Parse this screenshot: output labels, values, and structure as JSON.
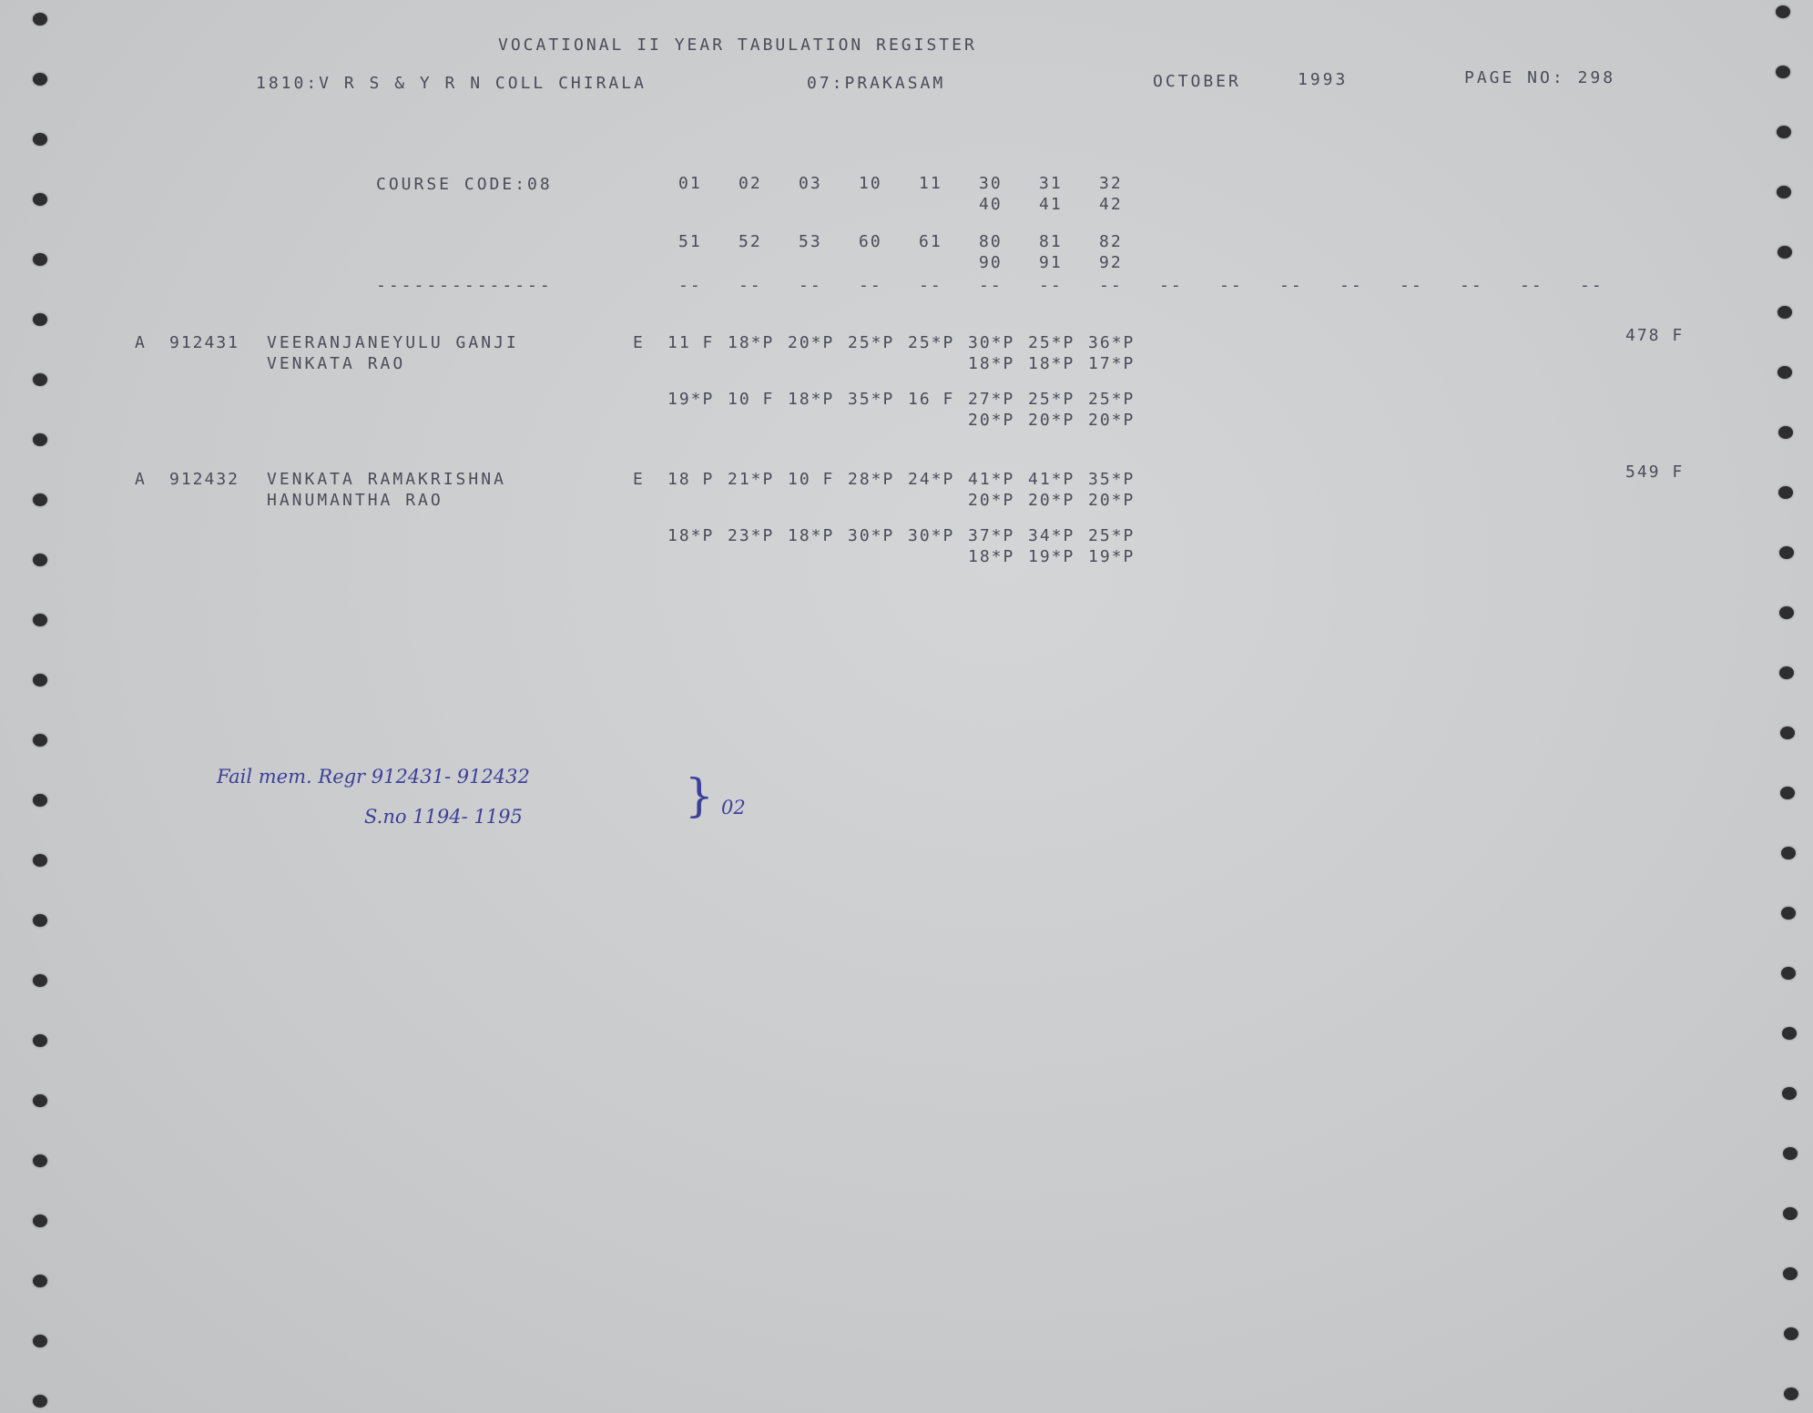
{
  "header": {
    "title": "VOCATIONAL II YEAR TABULATION REGISTER",
    "college": "1810:V R S & Y R N COLL CHIRALA",
    "district": "07:PRAKASAM",
    "month": "OCTOBER",
    "year": "1993",
    "page": "PAGE NO: 298"
  },
  "course": {
    "label": "COURSE CODE:08",
    "row1": [
      "01",
      "02",
      "03",
      "10",
      "11",
      "30",
      "31",
      "32"
    ],
    "row1_sub": [
      "40",
      "41",
      "42"
    ],
    "row2": [
      "51",
      "52",
      "53",
      "60",
      "61",
      "80",
      "81",
      "82"
    ],
    "row2_sub": [
      "90",
      "91",
      "92"
    ],
    "underline": "--------------",
    "dashes": [
      "--",
      "--",
      "--",
      "--",
      "--",
      "--",
      "--",
      "--",
      "--",
      "--",
      "--",
      "--",
      "--",
      "--",
      "--",
      "--"
    ]
  },
  "students": [
    {
      "category": "A",
      "regno": "912431",
      "name1": "VEERANJANEYULU GANJI",
      "name2": "VENKATA RAO",
      "medium": "E",
      "marks1": [
        "11 F",
        "18*P",
        "20*P",
        "25*P",
        "25*P",
        "30*P",
        "25*P",
        "36*P"
      ],
      "marks1_sub": [
        "18*P",
        "18*P",
        "17*P"
      ],
      "marks2": [
        "19*P",
        "10 F",
        "18*P",
        "35*P",
        "16 F",
        "27*P",
        "25*P",
        "25*P"
      ],
      "marks2_sub": [
        "20*P",
        "20*P",
        "20*P"
      ],
      "total": "478 F"
    },
    {
      "category": "A",
      "regno": "912432",
      "name1": "VENKATA RAMAKRISHNA",
      "name2": "HANUMANTHA RAO",
      "medium": "E",
      "marks1": [
        "18 P",
        "21*P",
        "10 F",
        "28*P",
        "24*P",
        "41*P",
        "41*P",
        "35*P"
      ],
      "marks1_sub": [
        "20*P",
        "20*P",
        "20*P"
      ],
      "marks2": [
        "18*P",
        "23*P",
        "18*P",
        "30*P",
        "30*P",
        "37*P",
        "34*P",
        "25*P"
      ],
      "marks2_sub": [
        "18*P",
        "19*P",
        "19*P"
      ],
      "total": "549 F"
    }
  ],
  "note": {
    "line1": "Fail mem. Regr 912431- 912432",
    "line2": "S.no 1194- 1195",
    "count": "02",
    "ink_color": "#3d3f9a"
  }
}
